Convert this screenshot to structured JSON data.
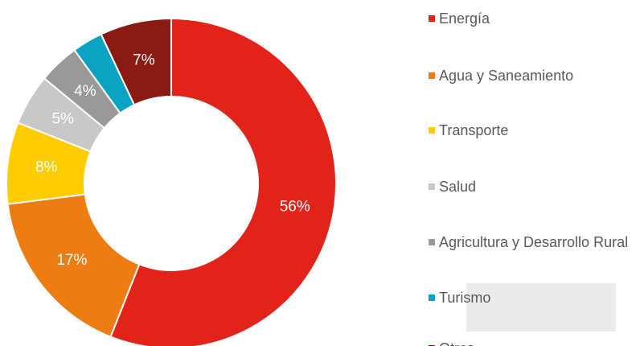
{
  "chart_data": {
    "type": "donut",
    "categories": [
      "Energía",
      "Agua y Saneamiento",
      "Transporte",
      "Salud",
      "Agricultura y Desarrollo Rural",
      "Turismo",
      "Otros"
    ],
    "values": [
      56,
      17,
      8,
      5,
      4,
      3,
      7
    ],
    "value_labels": [
      "56%",
      "17%",
      "8%",
      "5%",
      "4%",
      null,
      "7%"
    ],
    "colors": [
      "#e2231a",
      "#ed7d13",
      "#ffcc00",
      "#c8c8c8",
      "#999999",
      "#0aa3c2",
      "#8b1a12"
    ],
    "legend": "right"
  }
}
